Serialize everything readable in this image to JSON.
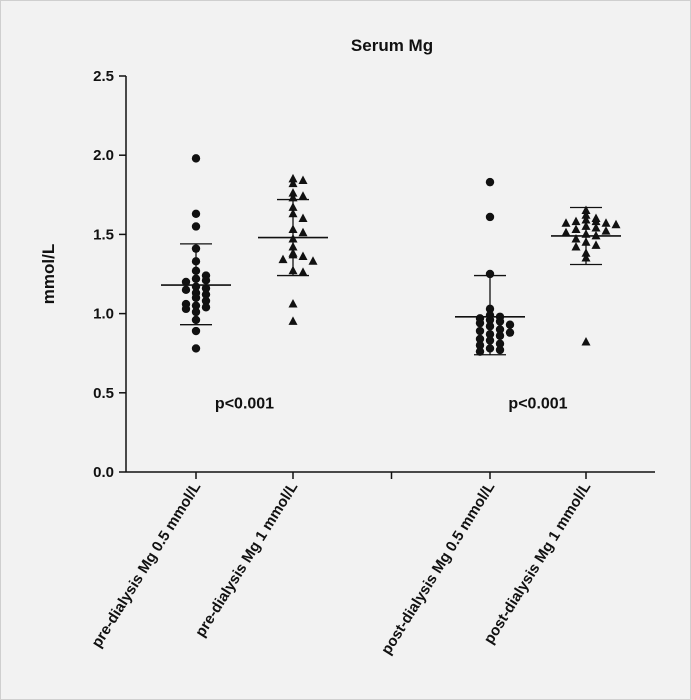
{
  "chart_data": {
    "type": "scatter",
    "title": "Serum Mg",
    "ylabel": "mmol/L",
    "xlabel": "",
    "ylim": [
      0,
      2.5
    ],
    "yticks": [
      "0.0",
      "0.5",
      "1.0",
      "1.5",
      "2.0",
      "2.5"
    ],
    "grid": false,
    "categories": [
      "pre-dialysis Mg 0.5 mmol/L",
      "pre-dialysis Mg 1 mmol/L",
      "post-dialysis Mg 0.5 mmol/L",
      "post-dialysis Mg 1 mmol/L"
    ],
    "series": [
      {
        "marker": "circle",
        "mean": 1.18,
        "sd_low": 0.93,
        "sd_high": 1.44,
        "values": [
          1.98,
          1.63,
          1.55,
          1.41,
          1.33,
          1.27,
          1.24,
          1.22,
          1.21,
          1.2,
          1.17,
          1.16,
          1.15,
          1.13,
          1.12,
          1.1,
          1.08,
          1.06,
          1.05,
          1.04,
          1.03,
          1.01,
          0.96,
          0.89,
          0.78
        ]
      },
      {
        "marker": "triangle",
        "mean": 1.48,
        "sd_low": 1.24,
        "sd_high": 1.72,
        "values": [
          1.85,
          1.84,
          1.82,
          1.76,
          1.74,
          1.73,
          1.67,
          1.63,
          1.6,
          1.53,
          1.51,
          1.47,
          1.42,
          1.38,
          1.37,
          1.36,
          1.34,
          1.33,
          1.27,
          1.26,
          1.06,
          0.95
        ]
      },
      {
        "marker": "circle",
        "mean": 0.98,
        "sd_low": 0.74,
        "sd_high": 1.24,
        "values": [
          1.83,
          1.61,
          1.25,
          1.03,
          0.99,
          0.98,
          0.97,
          0.96,
          0.95,
          0.94,
          0.93,
          0.92,
          0.9,
          0.89,
          0.88,
          0.87,
          0.86,
          0.84,
          0.83,
          0.81,
          0.8,
          0.78,
          0.77,
          0.76
        ]
      },
      {
        "marker": "triangle",
        "mean": 1.49,
        "sd_low": 1.31,
        "sd_high": 1.67,
        "values": [
          1.65,
          1.62,
          1.6,
          1.59,
          1.58,
          1.58,
          1.57,
          1.57,
          1.56,
          1.55,
          1.54,
          1.53,
          1.52,
          1.51,
          1.5,
          1.49,
          1.47,
          1.45,
          1.43,
          1.42,
          1.38,
          1.35,
          0.82
        ]
      }
    ],
    "annotations": [
      {
        "text": "p<0.001",
        "x_between": [
          0,
          1
        ],
        "y": 0.44
      },
      {
        "text": "p<0.001",
        "x_between": [
          2,
          3
        ],
        "y": 0.44
      }
    ]
  }
}
